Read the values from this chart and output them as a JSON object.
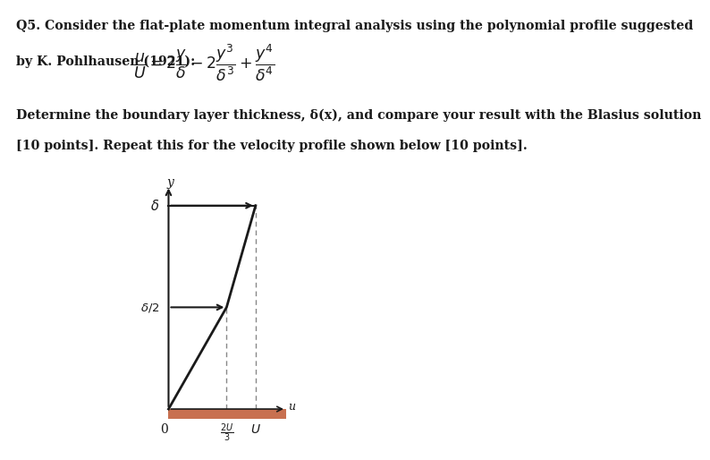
{
  "title_line1": "Q5. Consider the flat-plate momentum integral analysis using the polynomial profile suggested",
  "title_line2": "by K. Pohlhausen (1921):",
  "body_text_line1": "Determine the boundary layer thickness, δ(x), and compare your result with the Blasius solution",
  "body_text_line2": "[10 points]. Repeat this for the velocity profile shown below [10 points].",
  "background_color": "#ffffff",
  "text_color": "#1a1a1a",
  "plate_color": "#c87050",
  "line_color": "#1a1a1a",
  "dashed_color": "#888888",
  "diagram_ox": 0.385,
  "diagram_oy": 0.095,
  "diagram_dw": 0.21,
  "diagram_dh": 0.46
}
